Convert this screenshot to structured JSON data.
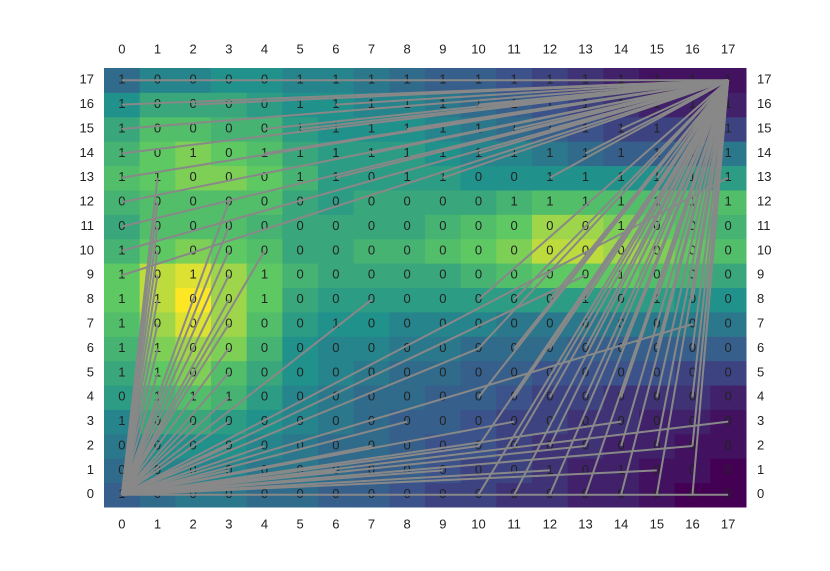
{
  "chart_data": {
    "type": "heatmap",
    "xticks": [
      0,
      1,
      2,
      3,
      4,
      5,
      6,
      7,
      8,
      9,
      10,
      11,
      12,
      13,
      14,
      15,
      16,
      17
    ],
    "yticks": [
      0,
      1,
      2,
      3,
      4,
      5,
      6,
      7,
      8,
      9,
      10,
      11,
      12,
      13,
      14,
      15,
      16,
      17
    ],
    "xlim": [
      -0.5,
      17.5
    ],
    "ylim": [
      -0.5,
      17.5
    ],
    "colormap": [
      "#440154",
      "#3b528b",
      "#21918c",
      "#5ec962",
      "#fde725"
    ],
    "line_color": "#888888",
    "labels": [
      [
        1,
        0,
        0,
        0,
        0,
        0,
        0,
        0,
        0,
        0,
        0,
        0,
        0,
        0,
        0,
        0,
        0,
        0
      ],
      [
        0,
        0,
        0,
        0,
        0,
        0,
        0,
        0,
        0,
        0,
        0,
        0,
        1,
        0,
        1,
        0,
        0,
        0
      ],
      [
        0,
        0,
        0,
        0,
        0,
        0,
        0,
        0,
        0,
        0,
        0,
        0,
        0,
        0,
        0,
        0,
        0,
        0
      ],
      [
        1,
        0,
        0,
        0,
        0,
        0,
        0,
        0,
        0,
        0,
        0,
        0,
        0,
        0,
        0,
        0,
        0,
        0
      ],
      [
        0,
        1,
        1,
        1,
        0,
        0,
        0,
        0,
        0,
        0,
        0,
        0,
        0,
        0,
        0,
        0,
        0,
        0
      ],
      [
        1,
        1,
        0,
        0,
        0,
        0,
        0,
        0,
        0,
        0,
        0,
        0,
        0,
        0,
        0,
        0,
        0,
        0
      ],
      [
        1,
        1,
        0,
        0,
        0,
        0,
        0,
        0,
        0,
        0,
        0,
        0,
        0,
        0,
        0,
        0,
        0,
        0
      ],
      [
        1,
        0,
        0,
        0,
        0,
        0,
        1,
        0,
        0,
        0,
        0,
        0,
        0,
        0,
        0,
        0,
        0,
        0
      ],
      [
        1,
        1,
        0,
        0,
        1,
        0,
        0,
        0,
        0,
        0,
        0,
        0,
        0,
        1,
        0,
        1,
        0,
        0
      ],
      [
        1,
        0,
        1,
        0,
        1,
        0,
        0,
        0,
        0,
        0,
        0,
        0,
        0,
        0,
        1,
        0,
        0,
        0
      ],
      [
        1,
        0,
        0,
        0,
        0,
        0,
        0,
        0,
        0,
        0,
        0,
        0,
        0,
        0,
        0,
        0,
        0,
        0
      ],
      [
        0,
        0,
        0,
        0,
        0,
        0,
        0,
        0,
        0,
        0,
        0,
        0,
        0,
        0,
        1,
        0,
        0,
        0
      ],
      [
        0,
        0,
        0,
        0,
        0,
        0,
        0,
        0,
        0,
        0,
        0,
        1,
        1,
        1,
        1,
        1,
        1,
        1
      ],
      [
        1,
        1,
        0,
        0,
        0,
        1,
        1,
        0,
        1,
        1,
        0,
        0,
        1,
        1,
        1,
        1,
        1,
        1
      ],
      [
        1,
        0,
        1,
        0,
        1,
        1,
        1,
        1,
        1,
        1,
        1,
        1,
        1,
        1,
        1,
        1,
        1,
        1
      ],
      [
        1,
        0,
        0,
        0,
        0,
        1,
        1,
        1,
        1,
        1,
        1,
        1,
        1,
        1,
        1,
        1,
        1,
        1
      ],
      [
        1,
        0,
        0,
        0,
        0,
        1,
        1,
        1,
        1,
        1,
        1,
        1,
        1,
        1,
        1,
        1,
        1,
        1
      ],
      [
        1,
        0,
        0,
        0,
        0,
        1,
        1,
        1,
        1,
        1,
        1,
        1,
        1,
        1,
        1,
        1,
        1,
        1
      ]
    ],
    "z": [
      [
        0.3,
        0.35,
        0.4,
        0.4,
        0.35,
        0.35,
        0.3,
        0.3,
        0.25,
        0.2,
        0.2,
        0.15,
        0.15,
        0.1,
        0.1,
        0.05,
        0,
        0
      ],
      [
        0.35,
        0.45,
        0.45,
        0.45,
        0.4,
        0.4,
        0.35,
        0.3,
        0.3,
        0.25,
        0.2,
        0.2,
        0.15,
        0.1,
        0.1,
        0.05,
        0.05,
        0
      ],
      [
        0.4,
        0.5,
        0.5,
        0.5,
        0.45,
        0.4,
        0.35,
        0.35,
        0.3,
        0.25,
        0.25,
        0.2,
        0.15,
        0.15,
        0.1,
        0.1,
        0.05,
        0.05
      ],
      [
        0.45,
        0.6,
        0.6,
        0.55,
        0.5,
        0.45,
        0.4,
        0.35,
        0.3,
        0.3,
        0.25,
        0.2,
        0.2,
        0.15,
        0.15,
        0.1,
        0.1,
        0.05
      ],
      [
        0.55,
        0.65,
        0.7,
        0.65,
        0.55,
        0.45,
        0.4,
        0.35,
        0.35,
        0.3,
        0.3,
        0.25,
        0.2,
        0.2,
        0.15,
        0.15,
        0.15,
        0.1
      ],
      [
        0.6,
        0.75,
        0.8,
        0.7,
        0.6,
        0.5,
        0.45,
        0.4,
        0.35,
        0.35,
        0.3,
        0.3,
        0.25,
        0.25,
        0.25,
        0.25,
        0.2,
        0.2
      ],
      [
        0.65,
        0.8,
        0.85,
        0.8,
        0.65,
        0.5,
        0.45,
        0.45,
        0.4,
        0.4,
        0.35,
        0.35,
        0.35,
        0.3,
        0.3,
        0.3,
        0.3,
        0.3
      ],
      [
        0.7,
        0.85,
        0.95,
        0.85,
        0.7,
        0.55,
        0.5,
        0.5,
        0.45,
        0.45,
        0.45,
        0.4,
        0.4,
        0.4,
        0.4,
        0.4,
        0.4,
        0.4
      ],
      [
        0.75,
        0.9,
        1,
        0.85,
        0.75,
        0.6,
        0.55,
        0.55,
        0.55,
        0.55,
        0.55,
        0.55,
        0.55,
        0.55,
        0.55,
        0.55,
        0.5,
        0.5
      ],
      [
        0.75,
        0.9,
        0.95,
        0.85,
        0.75,
        0.65,
        0.6,
        0.6,
        0.6,
        0.6,
        0.65,
        0.7,
        0.75,
        0.75,
        0.75,
        0.7,
        0.65,
        0.6
      ],
      [
        0.65,
        0.75,
        0.8,
        0.75,
        0.7,
        0.6,
        0.6,
        0.65,
        0.65,
        0.7,
        0.75,
        0.8,
        0.9,
        0.9,
        0.85,
        0.8,
        0.75,
        0.7
      ],
      [
        0.6,
        0.7,
        0.7,
        0.7,
        0.65,
        0.6,
        0.6,
        0.6,
        0.6,
        0.65,
        0.7,
        0.75,
        0.85,
        0.85,
        0.8,
        0.75,
        0.7,
        0.65
      ],
      [
        0.65,
        0.7,
        0.7,
        0.7,
        0.7,
        0.6,
        0.55,
        0.6,
        0.6,
        0.6,
        0.6,
        0.65,
        0.7,
        0.7,
        0.7,
        0.7,
        0.7,
        0.7
      ],
      [
        0.7,
        0.75,
        0.8,
        0.8,
        0.75,
        0.65,
        0.55,
        0.55,
        0.55,
        0.55,
        0.5,
        0.5,
        0.5,
        0.5,
        0.5,
        0.5,
        0.55,
        0.55
      ],
      [
        0.65,
        0.75,
        0.8,
        0.75,
        0.7,
        0.6,
        0.55,
        0.55,
        0.55,
        0.5,
        0.45,
        0.45,
        0.4,
        0.35,
        0.3,
        0.3,
        0.35,
        0.4
      ],
      [
        0.6,
        0.7,
        0.7,
        0.65,
        0.65,
        0.55,
        0.5,
        0.5,
        0.5,
        0.45,
        0.4,
        0.35,
        0.3,
        0.25,
        0.2,
        0.2,
        0.2,
        0.2
      ],
      [
        0.5,
        0.6,
        0.6,
        0.6,
        0.55,
        0.5,
        0.5,
        0.45,
        0.45,
        0.4,
        0.35,
        0.3,
        0.25,
        0.2,
        0.15,
        0.1,
        0.1,
        0.1
      ],
      [
        0.35,
        0.45,
        0.45,
        0.5,
        0.5,
        0.45,
        0.45,
        0.4,
        0.35,
        0.3,
        0.3,
        0.25,
        0.2,
        0.15,
        0.1,
        0.05,
        0.05,
        0.05
      ]
    ]
  }
}
